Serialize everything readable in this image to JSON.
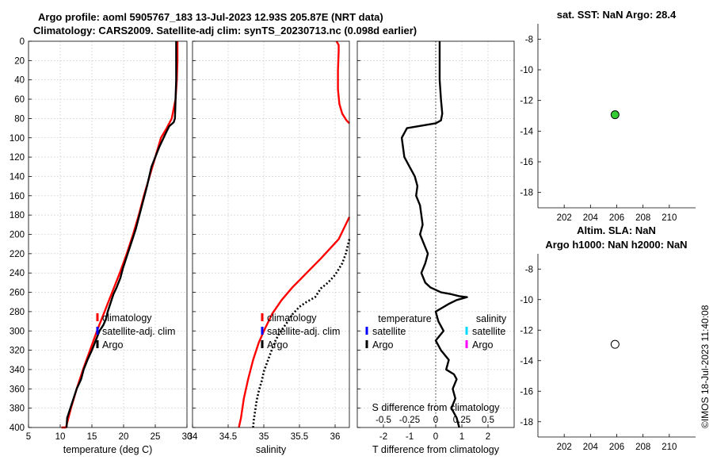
{
  "header": {
    "title_line1": "Argo profile: aoml 5905767_183 13-Jul-2023 12.93S 205.87E (NRT data)",
    "title_line2": "Climatology: CARS2009. Satellite-adj clim: synTS_20230713.nc (0.098d earlier)"
  },
  "watermark": "©IMOS 18-Jul-2023 11:40:08",
  "colors": {
    "climatology": "#ff0000",
    "satellite": "#0000ff",
    "argo": "#000000",
    "sal_satellite": "#00d8ff",
    "sal_argo": "#ff00ff",
    "marker_sst": "#33cc33"
  },
  "chart_data": [
    {
      "id": "temperature",
      "type": "line",
      "xlabel": "temperature (deg C)",
      "ylabel": "",
      "xlim": [
        5,
        30
      ],
      "ylim": [
        400,
        0
      ],
      "xticks": [
        5,
        10,
        15,
        20,
        25,
        30
      ],
      "yticks": [
        0,
        20,
        40,
        60,
        80,
        100,
        120,
        140,
        160,
        180,
        200,
        220,
        240,
        260,
        280,
        300,
        320,
        340,
        360,
        380,
        400
      ],
      "legend": [
        "climatology",
        "satellite-adj. clim",
        "Argo"
      ],
      "legend_position": "lower-middle",
      "series": [
        {
          "name": "climatology",
          "style": "solid",
          "color": "#ff0000",
          "x": [
            28.5,
            28.5,
            28.4,
            28.2,
            27.6,
            26.8,
            25.9,
            25.0,
            24.1,
            23.2,
            22.4,
            21.5,
            20.5,
            19.4,
            18.2,
            17.0,
            15.8,
            14.7,
            13.6,
            12.6,
            11.7,
            10.9,
            10.2
          ],
          "y": [
            0,
            20,
            40,
            60,
            80,
            90,
            100,
            120,
            140,
            160,
            180,
            200,
            220,
            240,
            260,
            280,
            300,
            320,
            340,
            360,
            380,
            400,
            400
          ]
        },
        {
          "name": "Argo",
          "style": "solid",
          "color": "#000000",
          "x": [
            28.3,
            28.3,
            28.3,
            28.2,
            28.1,
            27.9,
            27.2,
            26.6,
            25.6,
            25.0,
            24.4,
            23.7,
            23.3,
            22.7,
            22.3,
            21.9,
            21.4,
            20.9,
            20.4,
            19.9,
            19.5,
            18.9,
            18.4,
            18.0,
            17.5,
            17.2,
            16.8,
            16.2,
            15.6,
            15.0,
            14.3,
            13.7,
            13.3,
            12.6,
            12.1,
            11.6,
            11.1,
            11.0
          ],
          "y": [
            0,
            20,
            40,
            60,
            80,
            84,
            88,
            96,
            110,
            120,
            130,
            150,
            160,
            175,
            185,
            195,
            205,
            215,
            225,
            235,
            245,
            255,
            262,
            270,
            280,
            288,
            294,
            300,
            310,
            320,
            330,
            340,
            350,
            360,
            370,
            380,
            390,
            400
          ]
        }
      ]
    },
    {
      "id": "salinity",
      "type": "line",
      "xlabel": "salinity",
      "ylabel": "",
      "xlim": [
        34,
        36.2
      ],
      "ylim": [
        400,
        0
      ],
      "xticks": [
        34,
        34.5,
        35,
        35.5,
        36
      ],
      "yticks": [
        0,
        20,
        40,
        60,
        80,
        100,
        120,
        140,
        160,
        180,
        200,
        220,
        240,
        260,
        280,
        300,
        320,
        340,
        360,
        380,
        400
      ],
      "legend": [
        "climatology",
        "satellite-adj. clim",
        "Argo"
      ],
      "legend_position": "lower-middle",
      "series": [
        {
          "name": "climatology",
          "style": "solid",
          "color": "#ff0000",
          "x": [
            36.02,
            36.05,
            36.05,
            36.04,
            36.04,
            36.06,
            36.1,
            36.16,
            36.2
          ],
          "y": [
            0,
            4,
            10,
            30,
            50,
            65,
            75,
            82,
            85
          ]
        },
        {
          "name": "climatology",
          "style": "solid",
          "color": "#ff0000",
          "x": [
            36.2,
            36.05,
            35.8,
            35.6,
            35.4,
            35.25,
            35.12,
            35.02,
            34.93,
            34.85,
            34.78,
            34.72,
            34.68,
            34.65
          ],
          "y": [
            182,
            205,
            225,
            240,
            255,
            268,
            282,
            297,
            312,
            330,
            350,
            370,
            390,
            400
          ]
        },
        {
          "name": "Argo",
          "style": "dotted",
          "color": "#000000",
          "x": [
            36.2,
            36.15,
            36.1,
            36.0,
            35.9,
            35.8,
            35.72,
            35.6,
            35.5,
            35.4,
            35.32,
            35.22,
            35.15,
            35.1,
            35.05,
            35.0,
            34.97,
            34.93,
            34.9,
            34.88,
            34.86,
            34.85
          ],
          "y": [
            205,
            220,
            230,
            242,
            250,
            256,
            265,
            270,
            275,
            283,
            292,
            302,
            312,
            322,
            332,
            342,
            352,
            362,
            372,
            382,
            392,
            400
          ]
        }
      ]
    },
    {
      "id": "difference",
      "type": "line",
      "xlabel": "T difference from climatology",
      "xlabel_top": "S difference from climatology",
      "xlim": [
        -3,
        3
      ],
      "ylim": [
        400,
        0
      ],
      "xticks": [
        -2,
        -1,
        0,
        1,
        2
      ],
      "xticks_s": [
        -0.5,
        -0.25,
        0,
        0.25,
        0.5
      ],
      "yticks": [
        0,
        20,
        40,
        60,
        80,
        100,
        120,
        140,
        160,
        180,
        200,
        220,
        240,
        260,
        280,
        300,
        320,
        340,
        360,
        380,
        400
      ],
      "zero_line": "dotted",
      "legend_left_title": "temperature",
      "legend_left": [
        "satellite",
        "Argo"
      ],
      "legend_right_title": "salinity",
      "legend_right": [
        "satellite",
        "Argo"
      ],
      "series": [
        {
          "name": "Argo T diff",
          "style": "solid",
          "color": "#000000",
          "x": [
            0.15,
            0.15,
            0.15,
            0.2,
            0.25,
            0.2,
            0.0,
            -1.1,
            -1.3,
            -1.25,
            -1.2,
            -1.1,
            -1.0,
            -0.8,
            -0.7,
            -0.75,
            -0.6,
            -0.55,
            -0.5,
            -0.6,
            -0.45,
            -0.3,
            -0.4,
            -0.55,
            -0.4,
            -0.2,
            0.2,
            0.6,
            0.9,
            1.2,
            0.8,
            0.5,
            0.0,
            0.1,
            0.3,
            0.0,
            0.2,
            0.5,
            0.4,
            0.7,
            0.8,
            0.65,
            0.75,
            0.6,
            0.8,
            0.9
          ],
          "y": [
            0,
            20,
            40,
            60,
            75,
            82,
            85,
            90,
            100,
            110,
            120,
            125,
            130,
            140,
            150,
            160,
            170,
            180,
            190,
            200,
            210,
            220,
            230,
            240,
            250,
            255,
            260,
            262,
            264,
            265,
            268,
            272,
            280,
            290,
            300,
            310,
            320,
            330,
            340,
            345,
            350,
            360,
            370,
            380,
            390,
            400
          ]
        }
      ]
    },
    {
      "id": "sst_map",
      "type": "scatter",
      "title": "sat. SST: NaN Argo: 28.4",
      "xlim": [
        200,
        212
      ],
      "ylim": [
        -19,
        -7
      ],
      "xticks": [
        202,
        204,
        206,
        208,
        210
      ],
      "yticks": [
        -8,
        -10,
        -12,
        -14,
        -16,
        -18
      ],
      "points": [
        {
          "x": 205.87,
          "y": -12.93,
          "fill": "#33cc33"
        }
      ]
    },
    {
      "id": "sla_map",
      "type": "scatter",
      "title": "Altim. SLA: NaN",
      "subtitle": "Argo h1000: NaN h2000: NaN",
      "xlim": [
        200,
        212
      ],
      "ylim": [
        -19,
        -7
      ],
      "xticks": [
        202,
        204,
        206,
        208,
        210
      ],
      "yticks": [
        -8,
        -10,
        -12,
        -14,
        -16,
        -18
      ],
      "points": [
        {
          "x": 205.87,
          "y": -12.93,
          "fill": "#ffffff"
        }
      ]
    }
  ]
}
